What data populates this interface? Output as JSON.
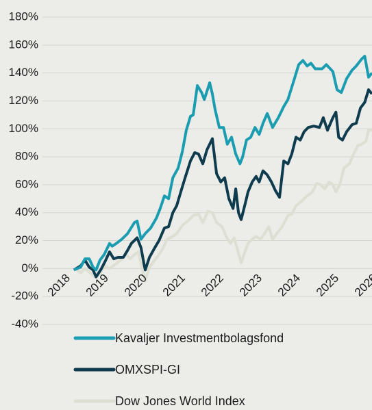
{
  "chart_data": {
    "type": "line",
    "xlim": [
      2018,
      2026
    ],
    "xticks": [
      2018,
      2019,
      2020,
      2021,
      2022,
      2023,
      2024,
      2025,
      2026
    ],
    "ylim": [
      -40,
      180
    ],
    "yticks": [
      {
        "value": -40,
        "label": "-40%"
      },
      {
        "value": -20,
        "label": "-20%"
      },
      {
        "value": 0,
        "label": "0%"
      },
      {
        "value": 20,
        "label": "20%"
      },
      {
        "value": 40,
        "label": "40%"
      },
      {
        "value": 60,
        "label": "60%"
      },
      {
        "value": 80,
        "label": "80%"
      },
      {
        "value": 100,
        "label": "100%"
      },
      {
        "value": 120,
        "label": "120%"
      },
      {
        "value": 140,
        "label": "140%"
      },
      {
        "value": 160,
        "label": "160%"
      },
      {
        "value": 180,
        "label": "180%"
      }
    ],
    "grid": true,
    "series": [
      {
        "name": "Dow Jones World Index",
        "color": "#dddfd3",
        "x": [
          2018.29,
          2018.39,
          2018.5,
          2018.64,
          2018.75,
          2018.89,
          2019,
          2019.14,
          2019.29,
          2019.43,
          2019.57,
          2019.68,
          2019.79,
          2019.89,
          2020,
          2020.07,
          2020.18,
          2020.32,
          2020.43,
          2020.54,
          2020.64,
          2020.79,
          2020.89,
          2021.04,
          2021.18,
          2021.32,
          2021.46,
          2021.57,
          2021.71,
          2021.82,
          2021.93,
          2022.07,
          2022.18,
          2022.29,
          2022.39,
          2022.5,
          2022.57,
          2022.68,
          2022.75,
          2022.86,
          2022.96,
          2023.07,
          2023.18,
          2023.29,
          2023.39,
          2023.5,
          2023.64,
          2023.79,
          2023.89,
          2024,
          2024.14,
          2024.29,
          2024.43,
          2024.54,
          2024.64,
          2024.75,
          2024.86,
          2024.96,
          2025.04,
          2025.14,
          2025.25,
          2025.39,
          2025.5,
          2025.61,
          2025.71,
          2025.82,
          2025.89,
          2025.98
        ],
        "values": [
          -1,
          -3,
          0,
          -3,
          -6,
          -4,
          2,
          0,
          3,
          6,
          10,
          7,
          10,
          12,
          -1,
          -9,
          1,
          6,
          10,
          15,
          21,
          23,
          25,
          31,
          34,
          38,
          39,
          33,
          41,
          40,
          33,
          30,
          23,
          18,
          22,
          11,
          4,
          13,
          18,
          21,
          23,
          21,
          25,
          30,
          21,
          25,
          30,
          38,
          39,
          45,
          48,
          52,
          55,
          61,
          60,
          57,
          62,
          60,
          55,
          60,
          72,
          75,
          82,
          88,
          89,
          91,
          99,
          99
        ]
      },
      {
        "name": "OMXSPI-GI",
        "color": "#0f3b4f",
        "x": [
          2018.21,
          2018.39,
          2018.5,
          2018.61,
          2018.71,
          2018.79,
          2018.93,
          2019.04,
          2019.14,
          2019.25,
          2019.36,
          2019.5,
          2019.61,
          2019.71,
          2019.86,
          2019.96,
          2020.04,
          2020.07,
          2020.18,
          2020.32,
          2020.43,
          2020.57,
          2020.68,
          2020.79,
          2020.89,
          2021,
          2021.11,
          2021.25,
          2021.36,
          2021.46,
          2021.57,
          2021.68,
          2021.82,
          2021.93,
          2022.04,
          2022.14,
          2022.25,
          2022.36,
          2022.43,
          2022.5,
          2022.57,
          2022.68,
          2022.75,
          2022.86,
          2022.96,
          2023.04,
          2023.14,
          2023.25,
          2023.36,
          2023.46,
          2023.57,
          2023.68,
          2023.79,
          2023.89,
          2024,
          2024.11,
          2024.21,
          2024.32,
          2024.46,
          2024.61,
          2024.71,
          2024.82,
          2024.96,
          2025.04,
          2025.11,
          2025.21,
          2025.32,
          2025.46,
          2025.57,
          2025.68,
          2025.79,
          2025.89,
          2025.98
        ],
        "values": [
          -1,
          2,
          6,
          1,
          -1,
          -6,
          0,
          6,
          12,
          7,
          8,
          8,
          13,
          18,
          22,
          15,
          3,
          -1,
          8,
          15,
          20,
          29,
          30,
          40,
          45,
          55,
          65,
          77,
          83,
          82,
          75,
          85,
          93,
          68,
          62,
          65,
          50,
          43,
          57,
          40,
          35,
          47,
          55,
          62,
          66,
          62,
          70,
          67,
          62,
          56,
          51,
          77,
          75,
          82,
          94,
          92,
          98,
          101,
          102,
          101,
          108,
          99,
          108,
          112,
          94,
          92,
          98,
          103,
          104,
          115,
          119,
          128,
          125
        ]
      },
      {
        "name": "Kavaljer Investmentbolagsfond",
        "color": "#1a9cb1",
        "x": [
          2018.21,
          2018.39,
          2018.5,
          2018.61,
          2018.71,
          2018.79,
          2018.89,
          2019,
          2019.14,
          2019.21,
          2019.32,
          2019.46,
          2019.61,
          2019.79,
          2019.86,
          2019.96,
          2020.07,
          2020.21,
          2020.36,
          2020.46,
          2020.57,
          2020.68,
          2020.79,
          2020.93,
          2021.04,
          2021.14,
          2021.25,
          2021.32,
          2021.43,
          2021.54,
          2021.61,
          2021.75,
          2021.82,
          2021.89,
          2022,
          2022.11,
          2022.21,
          2022.32,
          2022.43,
          2022.54,
          2022.61,
          2022.71,
          2022.82,
          2022.93,
          2023.04,
          2023.14,
          2023.25,
          2023.39,
          2023.54,
          2023.68,
          2023.79,
          2023.96,
          2024.07,
          2024.18,
          2024.29,
          2024.39,
          2024.5,
          2024.68,
          2024.79,
          2024.96,
          2025.07,
          2025.18,
          2025.32,
          2025.46,
          2025.57,
          2025.71,
          2025.79,
          2025.89,
          2025.98
        ],
        "values": [
          -1,
          1,
          7,
          7,
          1,
          -1,
          6,
          10,
          18,
          16,
          18,
          21,
          25,
          33,
          34,
          21,
          25,
          29,
          36,
          43,
          52,
          50,
          65,
          72,
          84,
          99,
          109,
          110,
          131,
          126,
          121,
          133,
          125,
          114,
          101,
          101,
          89,
          94,
          82,
          75,
          80,
          92,
          94,
          101,
          96,
          104,
          111,
          101,
          108,
          116,
          121,
          136,
          146,
          149,
          145,
          147,
          143,
          143,
          146,
          141,
          128,
          126,
          136,
          142,
          145,
          150,
          152,
          137,
          140
        ]
      }
    ]
  }
}
